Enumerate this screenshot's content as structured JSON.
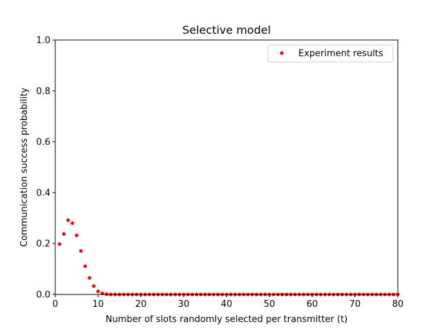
{
  "chart_data": {
    "type": "scatter",
    "title": "Selective model",
    "xlabel": "Number of slots randomly selected per transmitter (t)",
    "ylabel": "Communication success probability",
    "xlim": [
      0,
      80
    ],
    "ylim": [
      0,
      1.0
    ],
    "xticks": [
      0,
      10,
      20,
      30,
      40,
      50,
      60,
      70,
      80
    ],
    "xtick_labels": [
      "0",
      "10",
      "20",
      "30",
      "40",
      "50",
      "60",
      "70",
      "80"
    ],
    "yticks": [
      0.0,
      0.2,
      0.4,
      0.6,
      0.8,
      1.0
    ],
    "ytick_labels": [
      "0.0",
      "0.2",
      "0.4",
      "0.6",
      "0.8",
      "1.0"
    ],
    "grid": false,
    "legend_position": "top-right",
    "series": [
      {
        "name": "Experiment results",
        "color": "#ff0000",
        "marker": "point",
        "x": [
          1,
          2,
          3,
          4,
          5,
          6,
          7,
          8,
          9,
          10,
          11,
          12,
          13,
          14,
          15,
          16,
          17,
          18,
          19,
          20,
          21,
          22,
          23,
          24,
          25,
          26,
          27,
          28,
          29,
          30,
          31,
          32,
          33,
          34,
          35,
          36,
          37,
          38,
          39,
          40,
          41,
          42,
          43,
          44,
          45,
          46,
          47,
          48,
          49,
          50,
          51,
          52,
          53,
          54,
          55,
          56,
          57,
          58,
          59,
          60,
          61,
          62,
          63,
          64,
          65,
          66,
          67,
          68,
          69,
          70,
          71,
          72,
          73,
          74,
          75,
          76,
          77,
          78,
          79,
          80
        ],
        "y": [
          0.198,
          0.238,
          0.292,
          0.28,
          0.232,
          0.171,
          0.111,
          0.065,
          0.033,
          0.012,
          0.004,
          0.001,
          0,
          0,
          0,
          0,
          0,
          0,
          0,
          0,
          0,
          0,
          0,
          0,
          0,
          0,
          0,
          0,
          0,
          0,
          0,
          0,
          0,
          0,
          0,
          0,
          0,
          0,
          0,
          0,
          0,
          0,
          0,
          0,
          0,
          0,
          0,
          0,
          0,
          0,
          0,
          0,
          0,
          0,
          0,
          0,
          0,
          0,
          0,
          0,
          0,
          0,
          0,
          0,
          0,
          0,
          0,
          0,
          0,
          0,
          0,
          0,
          0,
          0,
          0,
          0,
          0,
          0,
          0,
          0
        ]
      }
    ]
  }
}
